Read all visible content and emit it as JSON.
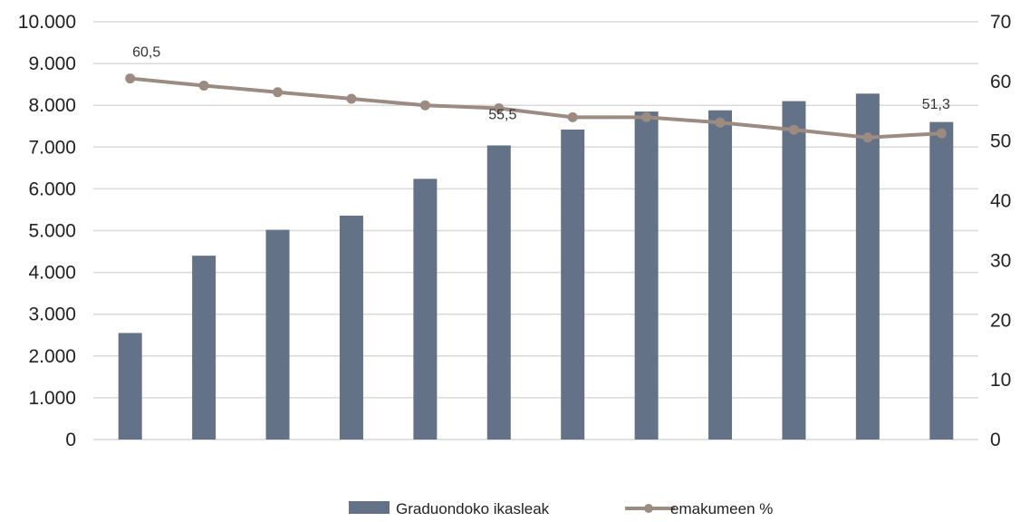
{
  "chart_data": {
    "type": "bar",
    "secondary_type": "line",
    "categories": [
      "",
      "",
      "",
      "",
      "",
      "",
      "",
      "",
      "",
      "",
      "",
      ""
    ],
    "series": [
      {
        "name": "Graduondoko ikasleak",
        "axis": "left",
        "kind": "bar",
        "color": "#647288",
        "values": [
          2550,
          4400,
          5020,
          5360,
          6240,
          7040,
          7420,
          7850,
          7880,
          8100,
          8280,
          7600
        ]
      },
      {
        "name": "emakumeen %",
        "axis": "right",
        "kind": "line",
        "color": "#9c8b80",
        "values": [
          60.5,
          59.3,
          58.2,
          57.1,
          56.0,
          55.5,
          54.0,
          54.0,
          53.1,
          51.9,
          50.6,
          51.3
        ]
      }
    ],
    "data_labels": [
      {
        "series": 1,
        "index": 0,
        "text": "60,5"
      },
      {
        "series": 1,
        "index": 5,
        "text": "55,5"
      },
      {
        "series": 1,
        "index": 11,
        "text": "51,3"
      }
    ],
    "y_left": {
      "lim": [
        0,
        10000
      ],
      "ticks": [
        0,
        1000,
        2000,
        3000,
        4000,
        5000,
        6000,
        7000,
        8000,
        9000,
        10000
      ],
      "tick_labels": [
        "0",
        "1.000",
        "2.000",
        "3.000",
        "4.000",
        "5.000",
        "6.000",
        "7.000",
        "8.000",
        "9.000",
        "10.000"
      ]
    },
    "y_right": {
      "lim": [
        0,
        70
      ],
      "ticks": [
        0,
        10,
        20,
        30,
        40,
        50,
        60,
        70
      ],
      "tick_labels": [
        "0",
        "10",
        "20",
        "30",
        "40",
        "50",
        "60",
        "70"
      ]
    },
    "grid": true,
    "legend_position": "bottom-center",
    "title": "",
    "xlabel": "",
    "ylabel": ""
  },
  "legend": {
    "bar_label": "Graduondoko ikasleak",
    "line_label": "emakumeen %"
  }
}
